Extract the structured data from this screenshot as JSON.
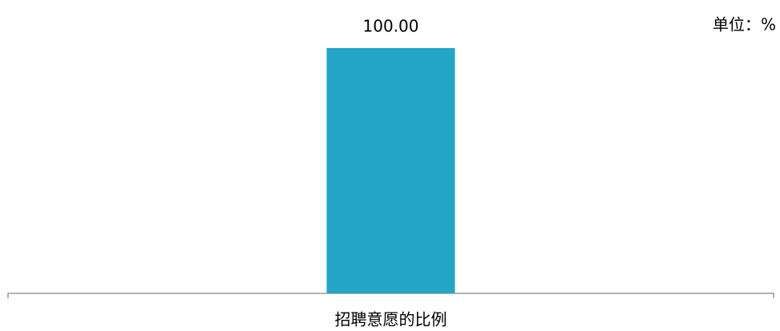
{
  "chart_data": {
    "type": "bar",
    "unit": "单位：%",
    "categories": [
      "招聘意愿的比例"
    ],
    "values": [
      100
    ],
    "value_labels": [
      "100.00"
    ],
    "color": "#23a5c5"
  }
}
